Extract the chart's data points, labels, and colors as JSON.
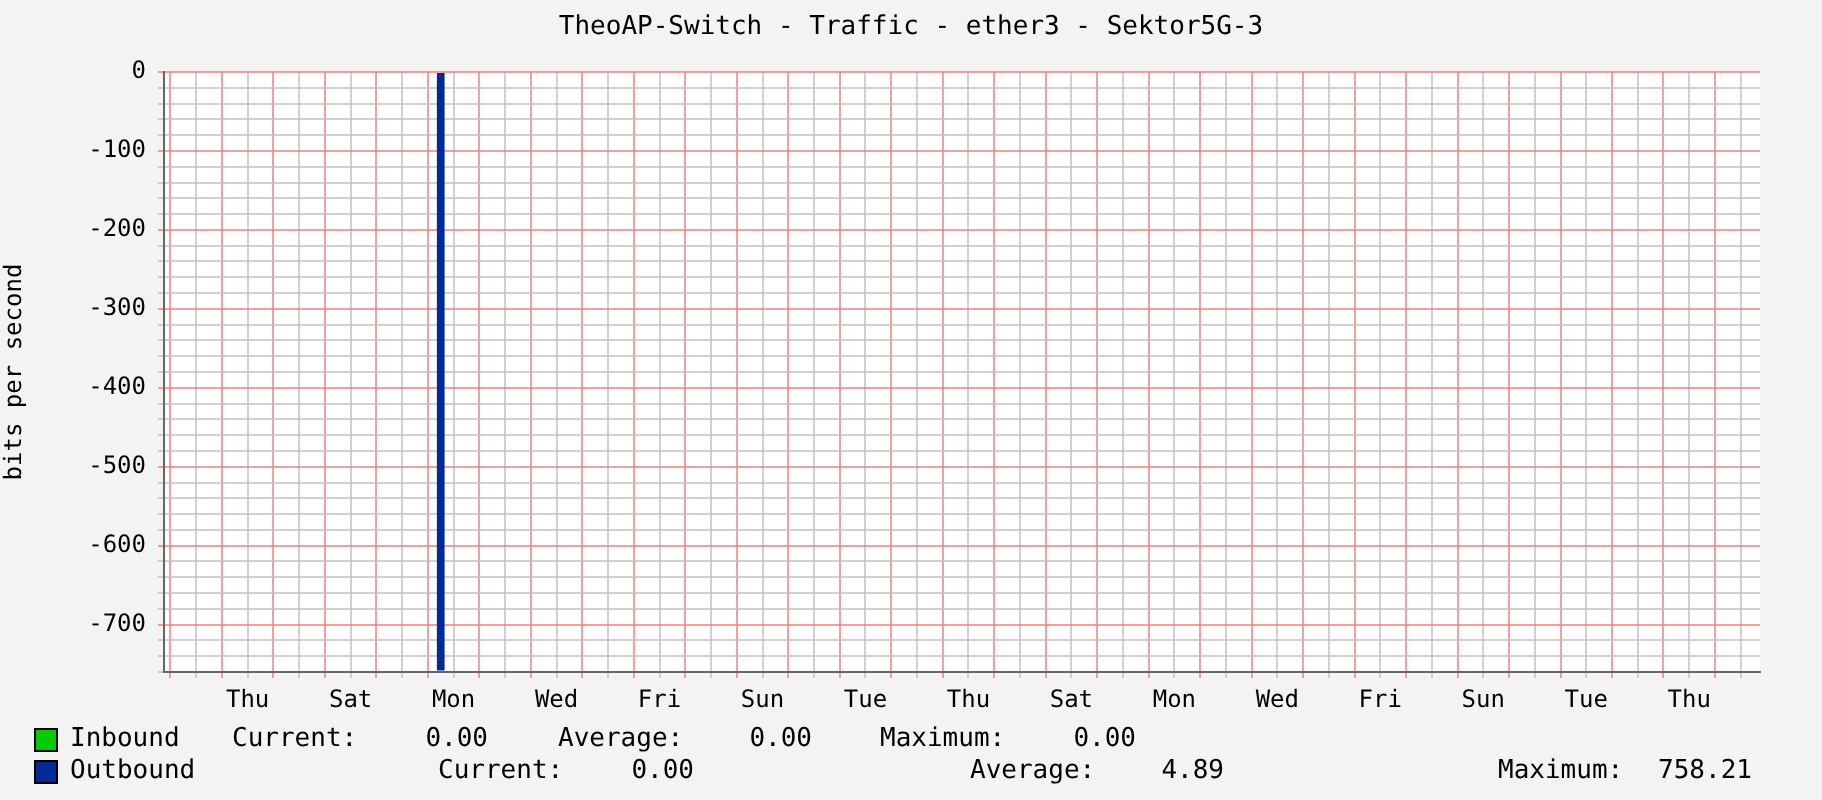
{
  "chart_data": {
    "type": "bar",
    "title": "TheoAP-Switch - Traffic - ether3 - Sektor5G-3",
    "ylabel": "bits per second",
    "categories": [
      null,
      null,
      null,
      null,
      null,
      null,
      "Thu",
      null,
      null,
      null,
      null,
      null,
      null,
      null,
      "Sat",
      null,
      null,
      null,
      null,
      null,
      null,
      null,
      "Mon",
      null,
      null,
      null,
      null,
      null,
      null,
      null,
      "Wed",
      null,
      null,
      null,
      null,
      null,
      null,
      null,
      "Fri",
      null,
      null,
      null,
      null,
      null,
      null,
      null,
      "Sun",
      null,
      null,
      null,
      null,
      null,
      null,
      null,
      "Tue",
      null,
      null,
      null,
      null,
      null,
      null,
      null,
      "Thu",
      null,
      null,
      null,
      null,
      null,
      null,
      null,
      "Sat",
      null,
      null,
      null,
      null,
      null,
      null,
      null,
      "Mon",
      null,
      null,
      null,
      null,
      null,
      null,
      null,
      "Wed",
      null,
      null,
      null,
      null,
      null,
      null,
      null,
      "Fri",
      null,
      null,
      null,
      null,
      null,
      null,
      null,
      "Sun",
      null,
      null,
      null,
      null,
      null,
      null,
      null,
      "Tue",
      null,
      null,
      null,
      null,
      null,
      null,
      null,
      "Thu",
      null,
      null,
      null,
      null,
      null
    ],
    "series": [
      {
        "name": "Inbound",
        "color": "#00cc00",
        "values": [
          0,
          0,
          0,
          0,
          0,
          0,
          0,
          0,
          0,
          0,
          0,
          0,
          0,
          0,
          0,
          0,
          0,
          0,
          0,
          0,
          0,
          0,
          0,
          0,
          0,
          0,
          0,
          0,
          0,
          0,
          0,
          0,
          0,
          0,
          0,
          0,
          0,
          0,
          0,
          0,
          0,
          0,
          0,
          0,
          0,
          0,
          0,
          0,
          0,
          0,
          0,
          0,
          0,
          0,
          0,
          0,
          0,
          0,
          0,
          0,
          0,
          0,
          0,
          0,
          0,
          0,
          0,
          0,
          0,
          0,
          0,
          0,
          0,
          0,
          0,
          0,
          0,
          0,
          0,
          0,
          0,
          0,
          0,
          0,
          0,
          0,
          0,
          0,
          0,
          0,
          0,
          0,
          0,
          0,
          0,
          0,
          0,
          0,
          0,
          0,
          0,
          0,
          0,
          0,
          0,
          0,
          0,
          0,
          0,
          0,
          0,
          0,
          0,
          0,
          0,
          0,
          0,
          0,
          0,
          0,
          0,
          0,
          0,
          0
        ]
      },
      {
        "name": "Outbound",
        "color": "#002a97",
        "values": [
          0,
          0,
          0,
          0,
          0,
          0,
          0,
          0,
          0,
          0,
          0,
          0,
          0,
          0,
          0,
          0,
          0,
          0,
          0,
          0,
          0,
          -758,
          0,
          0,
          0,
          0,
          0,
          0,
          0,
          0,
          0,
          0,
          0,
          0,
          0,
          0,
          0,
          0,
          0,
          0,
          0,
          0,
          0,
          0,
          0,
          0,
          0,
          0,
          0,
          0,
          0,
          0,
          0,
          0,
          0,
          0,
          0,
          0,
          0,
          0,
          0,
          0,
          0,
          0,
          0,
          0,
          0,
          0,
          0,
          0,
          0,
          0,
          0,
          0,
          0,
          0,
          0,
          0,
          0,
          0,
          0,
          0,
          0,
          0,
          0,
          0,
          0,
          0,
          0,
          0,
          0,
          0,
          0,
          0,
          0,
          0,
          0,
          0,
          0,
          0,
          0,
          0,
          0,
          0,
          0,
          0,
          0,
          0,
          0,
          0,
          0,
          0,
          0,
          0,
          0,
          0,
          0,
          0,
          0,
          0,
          0,
          0,
          0,
          0
        ]
      }
    ],
    "ylim": [
      -760,
      0
    ],
    "yticks": [
      {
        "value": -760,
        "label": null
      },
      {
        "value": -740,
        "label": null
      },
      {
        "value": -720,
        "label": null
      },
      -700,
      {
        "value": -680,
        "label": null
      },
      {
        "value": -660,
        "label": null
      },
      {
        "value": -640,
        "label": null
      },
      {
        "value": -620,
        "label": null
      },
      -600,
      {
        "value": -580,
        "label": null
      },
      {
        "value": -560,
        "label": null
      },
      {
        "value": -540,
        "label": null
      },
      {
        "value": -520,
        "label": null
      },
      -500,
      {
        "value": -480,
        "label": null
      },
      {
        "value": -460,
        "label": null
      },
      {
        "value": -440,
        "label": null
      },
      {
        "value": -420,
        "label": null
      },
      -400,
      {
        "value": -380,
        "label": null
      },
      {
        "value": -360,
        "label": null
      },
      {
        "value": -340,
        "label": null
      },
      {
        "value": -320,
        "label": null
      },
      -300,
      {
        "value": -280,
        "label": null
      },
      {
        "value": -260,
        "label": null
      },
      {
        "value": -240,
        "label": null
      },
      {
        "value": -220,
        "label": null
      },
      -200,
      {
        "value": -180,
        "label": null
      },
      {
        "value": -160,
        "label": null
      },
      {
        "value": -140,
        "label": null
      },
      {
        "value": -120,
        "label": null
      },
      -100,
      {
        "value": -80,
        "label": null
      },
      {
        "value": -60,
        "label": null
      },
      {
        "value": -40,
        "label": null
      },
      {
        "value": -20,
        "label": null
      },
      0
    ],
    "grid": true,
    "legend": "bottom",
    "annotations": [
      "Current:",
      "0.00",
      "Average:",
      "0.00",
      "Maximum:",
      "0.00",
      "Current:",
      "0.00",
      "Average:",
      "4.89",
      "Maximum:",
      "758.21"
    ]
  }
}
